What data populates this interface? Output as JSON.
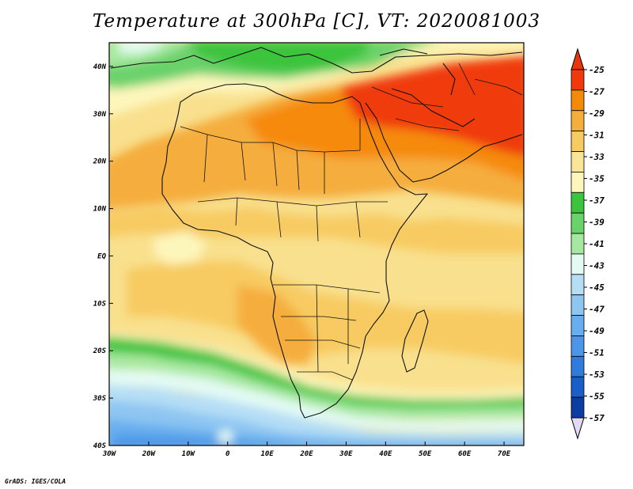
{
  "title": "Temperature at 300hPa [C], VT: 2020081003",
  "credit": "GrADS: IGES/COLA",
  "map": {
    "lon_range": [
      -30,
      75
    ],
    "lat_range": [
      -40,
      45
    ],
    "lon_ticks": [
      {
        "value": -30,
        "label": "30W"
      },
      {
        "value": -20,
        "label": "20W"
      },
      {
        "value": -10,
        "label": "10W"
      },
      {
        "value": 0,
        "label": "0"
      },
      {
        "value": 10,
        "label": "10E"
      },
      {
        "value": 20,
        "label": "20E"
      },
      {
        "value": 30,
        "label": "30E"
      },
      {
        "value": 40,
        "label": "40E"
      },
      {
        "value": 50,
        "label": "50E"
      },
      {
        "value": 60,
        "label": "60E"
      },
      {
        "value": 70,
        "label": "70E"
      }
    ],
    "lat_ticks": [
      {
        "value": 40,
        "label": "40N"
      },
      {
        "value": 30,
        "label": "30N"
      },
      {
        "value": 20,
        "label": "20N"
      },
      {
        "value": 10,
        "label": "10N"
      },
      {
        "value": 0,
        "label": "EQ"
      },
      {
        "value": -10,
        "label": "10S"
      },
      {
        "value": -20,
        "label": "20S"
      },
      {
        "value": -30,
        "label": "30S"
      },
      {
        "value": -40,
        "label": "40S"
      }
    ]
  },
  "colorbar": {
    "labels": [
      "-25",
      "-27",
      "-29",
      "-31",
      "-33",
      "-35",
      "-37",
      "-39",
      "-41",
      "-43",
      "-45",
      "-47",
      "-49",
      "-51",
      "-53",
      "-55",
      "-57"
    ],
    "colors": [
      "#f03a0c",
      "#f58a0a",
      "#f5ad3c",
      "#f7cb62",
      "#f9e597",
      "#fdf6bc",
      "#3dc43d",
      "#6ad26a",
      "#a7e8a0",
      "#e4fbf4",
      "#b5def5",
      "#8ec6f2",
      "#68aeee",
      "#4b96e8",
      "#2f7cdc",
      "#1a5ec8",
      "#0c3da3"
    ],
    "over_color": "#e8360c",
    "under_color": "#e2daf4"
  }
}
